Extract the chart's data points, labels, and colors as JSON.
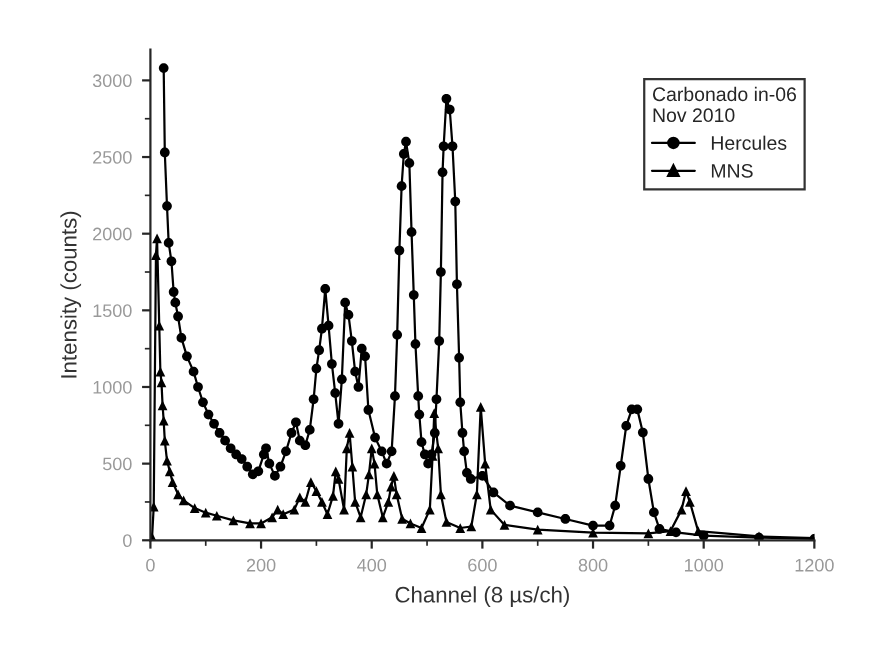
{
  "chart_data": {
    "type": "line",
    "xlabel": "Channel (8 µs/ch)",
    "ylabel": "Intensity (counts)",
    "legend_title": "Carbonado in-06\nNov 2010",
    "legend": "top right",
    "grid": false,
    "line_style": "solid",
    "xlim": [
      0,
      1200
    ],
    "xticks": [
      0,
      200,
      400,
      600,
      800,
      1000,
      1200
    ],
    "ylim": [
      0,
      3200
    ],
    "yticks": [
      0,
      500,
      1000,
      1500,
      2000,
      2500,
      3000
    ],
    "series": [
      {
        "name": "Hercules",
        "color": "#000000",
        "marker": "circle",
        "x": [
          24,
          26,
          30,
          33,
          38,
          42,
          45,
          50,
          56,
          66,
          78,
          86,
          95,
          105,
          115,
          125,
          135,
          145,
          155,
          165,
          175,
          185,
          195,
          205,
          209,
          215,
          225,
          235,
          245,
          255,
          263,
          270,
          280,
          288,
          295,
          300,
          305,
          310,
          316,
          322,
          328,
          334,
          340,
          346,
          352,
          358,
          364,
          370,
          376,
          382,
          388,
          394,
          406,
          418,
          427,
          436,
          442,
          446,
          450,
          454,
          458,
          462,
          468,
          472,
          476,
          479,
          484,
          486,
          490,
          496,
          502,
          508,
          514,
          517,
          522,
          525,
          528,
          530,
          535,
          541,
          546,
          551,
          554,
          558,
          560,
          564,
          567,
          572,
          579,
          600,
          620,
          650,
          700,
          750,
          800,
          830,
          840,
          850,
          860,
          870,
          880,
          890,
          900,
          910,
          920,
          950,
          1000,
          1100,
          1200
        ],
        "values": [
          3080,
          2530,
          2180,
          1940,
          1820,
          1620,
          1550,
          1460,
          1320,
          1200,
          1100,
          1000,
          900,
          820,
          760,
          700,
          650,
          600,
          560,
          530,
          480,
          430,
          450,
          560,
          600,
          500,
          420,
          480,
          580,
          700,
          770,
          650,
          620,
          720,
          920,
          1120,
          1240,
          1380,
          1640,
          1400,
          1150,
          960,
          760,
          1050,
          1550,
          1470,
          1300,
          1100,
          1000,
          1250,
          1200,
          850,
          670,
          580,
          500,
          580,
          940,
          1340,
          1890,
          2310,
          2520,
          2600,
          2460,
          2010,
          1600,
          1280,
          940,
          820,
          640,
          560,
          500,
          560,
          700,
          920,
          1300,
          1750,
          2400,
          2570,
          2880,
          2810,
          2570,
          2210,
          1670,
          1190,
          900,
          700,
          580,
          440,
          400,
          420,
          312,
          226,
          182,
          139,
          96,
          96,
          226,
          486,
          746,
          854,
          854,
          703,
          400,
          182,
          74,
          52,
          30,
          17,
          9
        ]
      },
      {
        "name": "MNS",
        "color": "#000000",
        "marker": "triangle",
        "x": [
          3,
          6,
          10,
          12,
          16,
          18,
          20,
          22,
          24,
          26,
          30,
          35,
          40,
          50,
          60,
          80,
          100,
          120,
          150,
          180,
          200,
          220,
          230,
          240,
          260,
          270,
          280,
          290,
          300,
          310,
          320,
          330,
          335,
          340,
          350,
          355,
          360,
          365,
          370,
          380,
          390,
          395,
          400,
          405,
          410,
          420,
          430,
          435,
          440,
          445,
          455,
          470,
          490,
          505,
          510,
          513,
          520,
          525,
          535,
          560,
          580,
          590,
          597,
          605,
          615,
          640,
          700,
          800,
          900,
          940,
          960,
          968,
          975,
          990,
          1100,
          1200
        ],
        "values": [
          20,
          220,
          1860,
          1970,
          1400,
          1100,
          1030,
          880,
          780,
          650,
          520,
          450,
          380,
          300,
          260,
          210,
          180,
          160,
          130,
          110,
          110,
          150,
          200,
          170,
          200,
          280,
          250,
          380,
          320,
          250,
          170,
          290,
          450,
          400,
          200,
          600,
          700,
          480,
          250,
          150,
          300,
          430,
          600,
          500,
          300,
          150,
          250,
          350,
          420,
          300,
          140,
          110,
          80,
          200,
          550,
          830,
          600,
          300,
          120,
          80,
          90,
          300,
          870,
          500,
          200,
          100,
          70,
          50,
          45,
          60,
          200,
          320,
          250,
          60,
          25,
          15
        ]
      }
    ]
  }
}
